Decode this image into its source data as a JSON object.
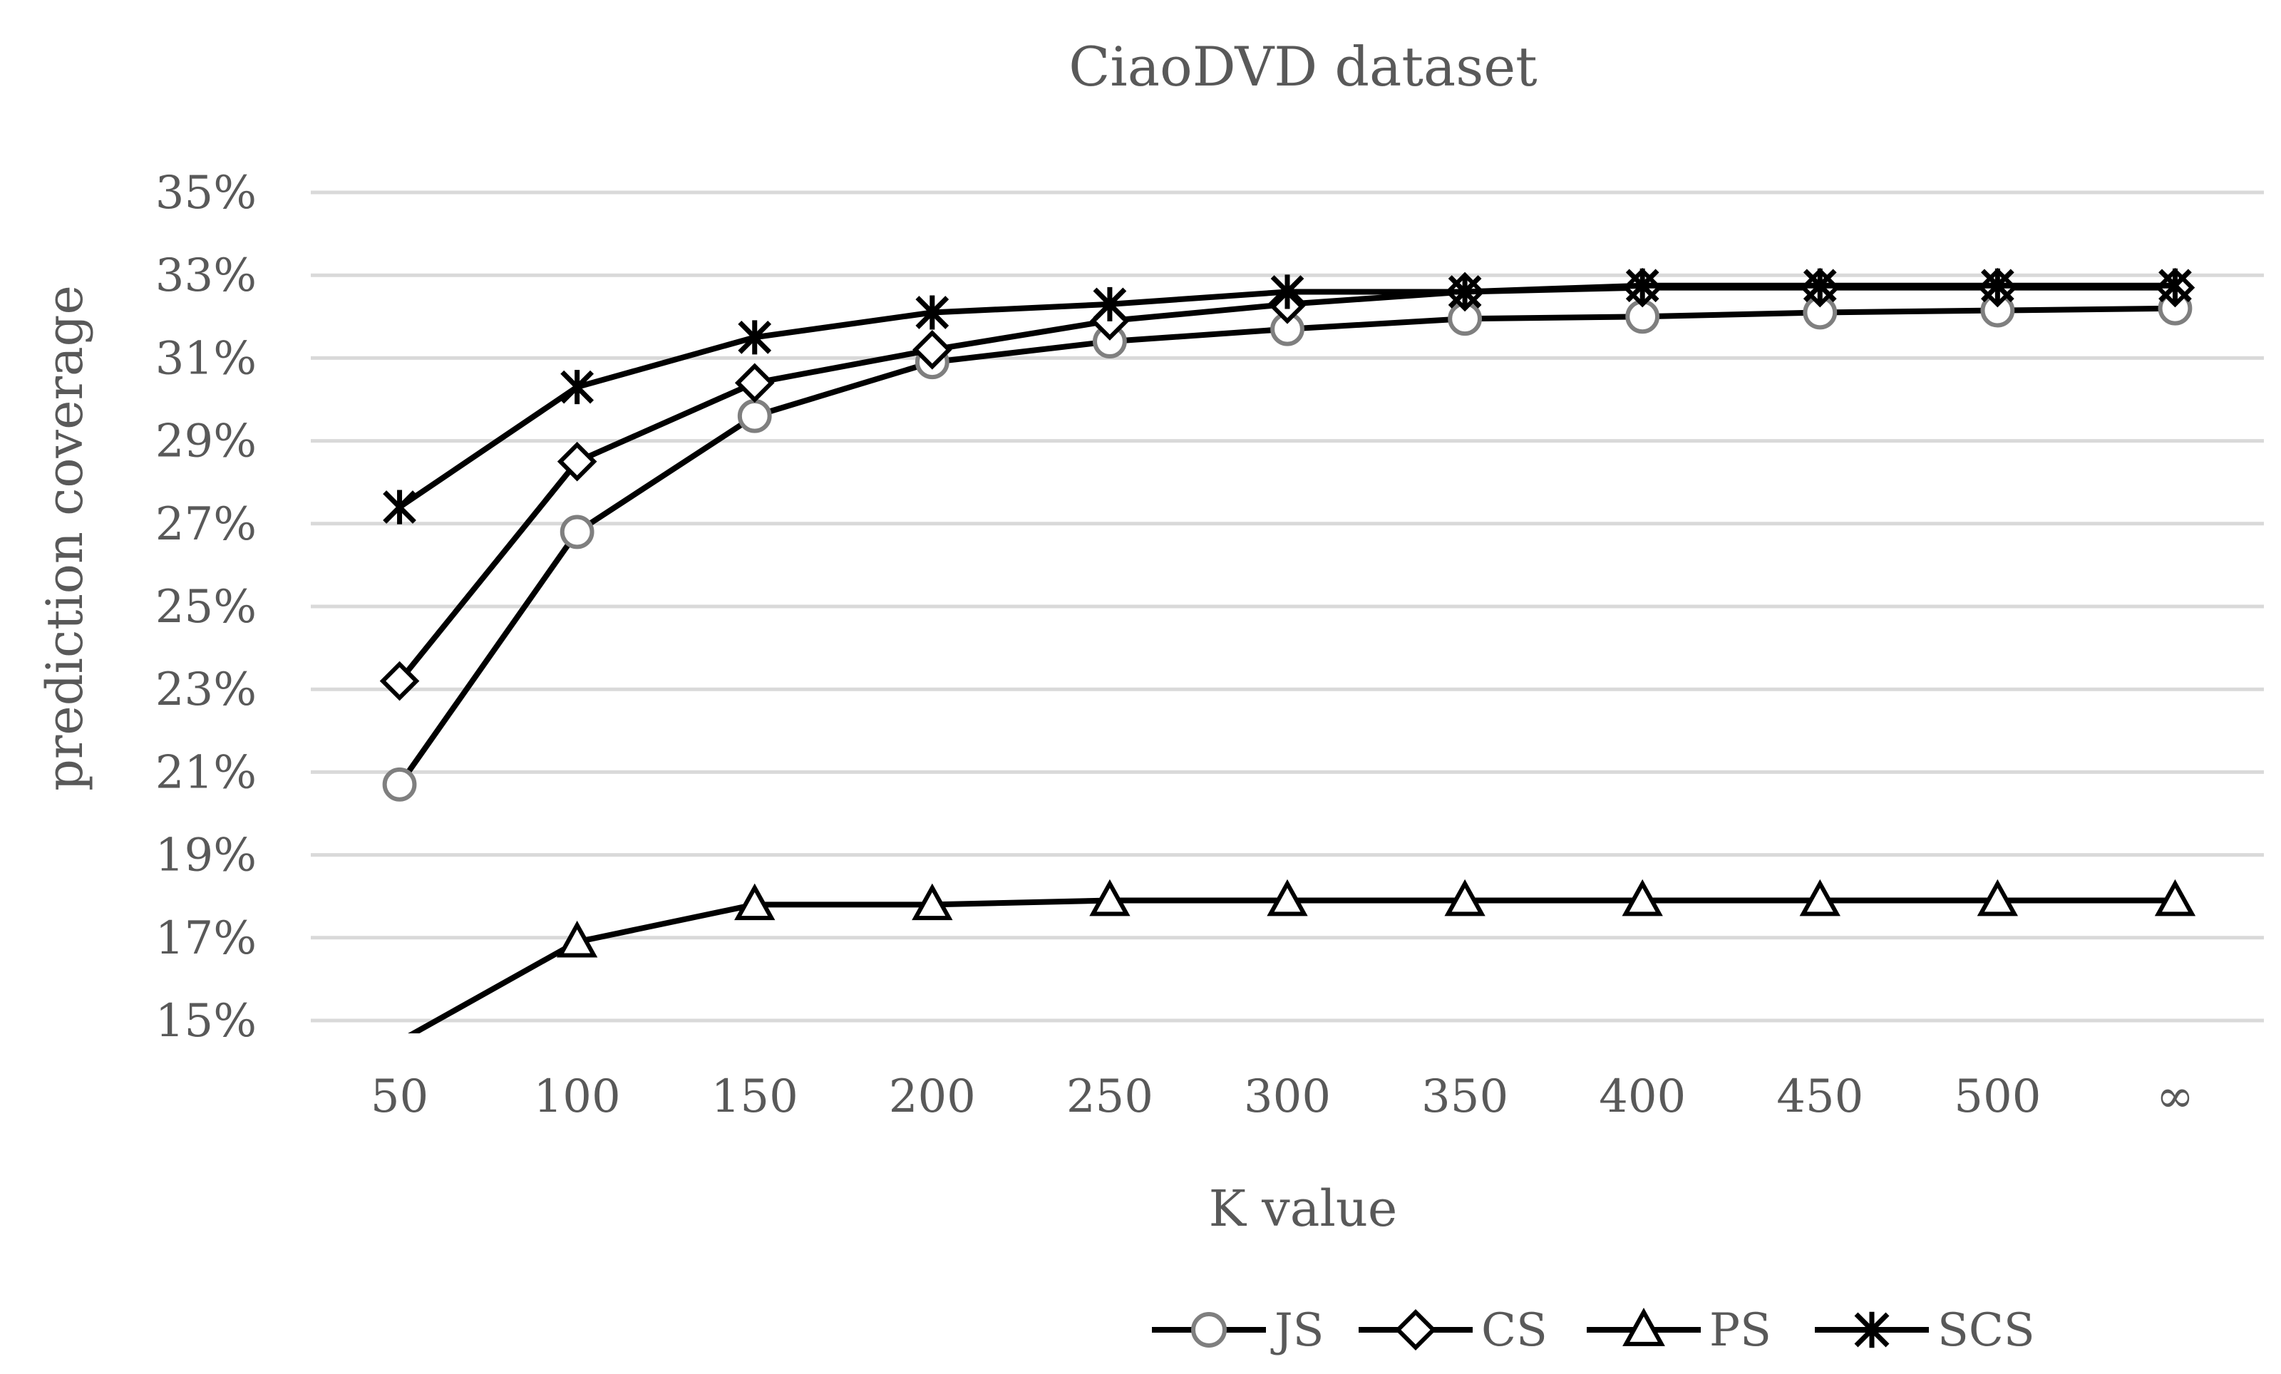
{
  "chart_data": {
    "type": "line",
    "title": "CiaoDVD dataset",
    "xlabel": "K value",
    "ylabel": "prediction coverage",
    "categories": [
      "50",
      "100",
      "150",
      "200",
      "250",
      "300",
      "350",
      "400",
      "450",
      "500",
      "∞"
    ],
    "y_ticks": [
      "15%",
      "17%",
      "19%",
      "21%",
      "23%",
      "25%",
      "27%",
      "29%",
      "31%",
      "33%",
      "35%"
    ],
    "ylim": [
      15,
      35
    ],
    "y_unit": "%",
    "grid": true,
    "legend_position": "bottom",
    "series": [
      {
        "name": "JS",
        "marker": "circle",
        "line_color": "#000000",
        "marker_color": "#7f7f7f",
        "values": [
          20.7,
          26.8,
          29.6,
          30.9,
          31.4,
          31.7,
          31.95,
          32.0,
          32.1,
          32.15,
          32.2
        ]
      },
      {
        "name": "CS",
        "marker": "diamond",
        "line_color": "#000000",
        "marker_color": "#000000",
        "values": [
          23.2,
          28.5,
          30.4,
          31.2,
          31.9,
          32.3,
          32.6,
          32.7,
          32.7,
          32.7,
          32.7
        ]
      },
      {
        "name": "PS",
        "marker": "triangle",
        "line_color": "#000000",
        "marker_color": "#000000",
        "values": [
          14.5,
          16.9,
          17.8,
          17.8,
          17.9,
          17.9,
          17.9,
          17.9,
          17.9,
          17.9,
          17.9
        ]
      },
      {
        "name": "SCS",
        "marker": "asterisk",
        "line_color": "#000000",
        "marker_color": "#000000",
        "values": [
          27.4,
          30.3,
          31.5,
          32.1,
          32.3,
          32.6,
          32.6,
          32.75,
          32.75,
          32.75,
          32.75
        ]
      }
    ]
  }
}
